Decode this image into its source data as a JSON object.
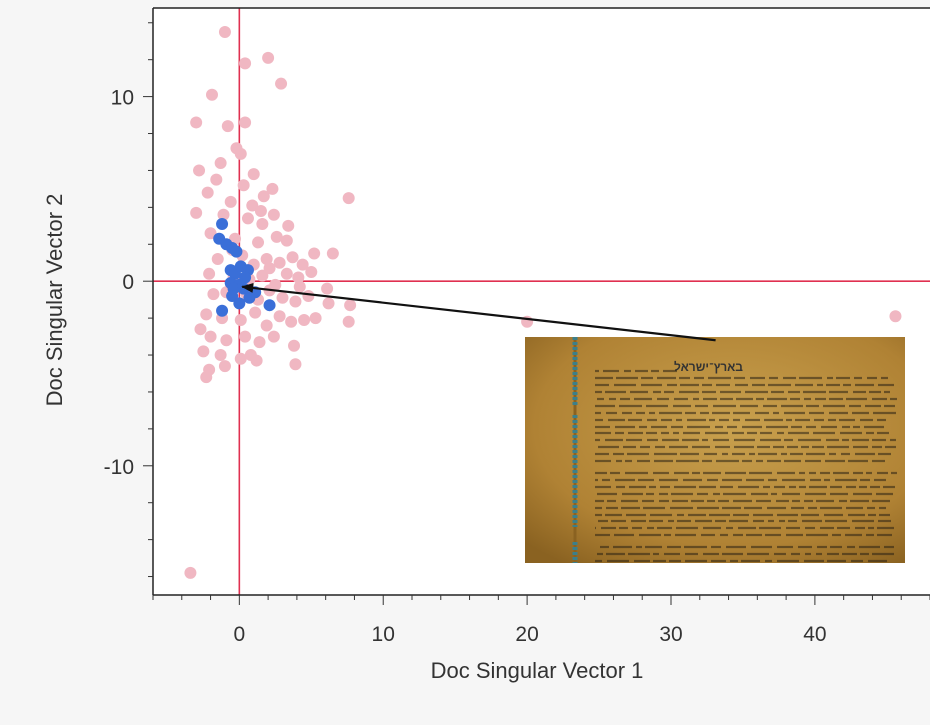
{
  "chart_data": {
    "type": "scatter",
    "xlabel": "Doc Singular Vector 1",
    "ylabel": "Doc Singular Vector 2",
    "xticks": [
      0,
      10,
      20,
      30,
      40
    ],
    "yticks": [
      10,
      0,
      -10
    ],
    "xlim": [
      -6,
      48
    ],
    "ylim": [
      -17,
      14.8
    ],
    "reference_lines": {
      "x": 0,
      "y": 0,
      "color": "#e03050"
    },
    "colors": {
      "background_points": "#f0b7c2",
      "highlighted_points": "#3a6fd8",
      "arrow": "#111111"
    },
    "series": [
      {
        "points": [
          [
            -1.0,
            13.5
          ],
          [
            0.4,
            11.8
          ],
          [
            2.0,
            12.1
          ],
          [
            2.9,
            10.7
          ],
          [
            -1.9,
            10.1
          ],
          [
            -3.0,
            8.6
          ],
          [
            -0.8,
            8.4
          ],
          [
            0.4,
            8.6
          ],
          [
            -0.2,
            7.2
          ],
          [
            -1.3,
            6.4
          ],
          [
            0.1,
            6.9
          ],
          [
            1.0,
            5.8
          ],
          [
            -2.8,
            6.0
          ],
          [
            -1.6,
            5.5
          ],
          [
            0.3,
            5.2
          ],
          [
            1.7,
            4.6
          ],
          [
            2.3,
            5.0
          ],
          [
            -2.2,
            4.8
          ],
          [
            -0.6,
            4.3
          ],
          [
            0.9,
            4.1
          ],
          [
            -3.0,
            3.7
          ],
          [
            -1.1,
            3.6
          ],
          [
            0.6,
            3.4
          ],
          [
            1.6,
            3.1
          ],
          [
            2.4,
            3.6
          ],
          [
            3.4,
            3.0
          ],
          [
            -2.0,
            2.6
          ],
          [
            -0.3,
            2.3
          ],
          [
            1.3,
            2.1
          ],
          [
            2.6,
            2.4
          ],
          [
            -1.5,
            1.2
          ],
          [
            0.2,
            1.4
          ],
          [
            1.0,
            0.9
          ],
          [
            1.9,
            1.2
          ],
          [
            2.8,
            1.0
          ],
          [
            3.7,
            1.3
          ],
          [
            4.4,
            0.9
          ],
          [
            5.2,
            1.5
          ],
          [
            6.5,
            1.5
          ],
          [
            -2.1,
            0.4
          ],
          [
            -0.4,
            0.2
          ],
          [
            0.7,
            0.1
          ],
          [
            1.6,
            0.3
          ],
          [
            2.5,
            -0.2
          ],
          [
            3.3,
            0.4
          ],
          [
            4.1,
            0.2
          ],
          [
            5.0,
            0.5
          ],
          [
            -1.8,
            -0.7
          ],
          [
            -0.9,
            -0.6
          ],
          [
            0.5,
            -0.7
          ],
          [
            1.3,
            -1.0
          ],
          [
            2.1,
            -0.5
          ],
          [
            3.0,
            -0.9
          ],
          [
            3.9,
            -1.1
          ],
          [
            4.8,
            -0.8
          ],
          [
            6.1,
            -0.4
          ],
          [
            6.2,
            -1.2
          ],
          [
            7.7,
            -1.3
          ],
          [
            7.6,
            -2.2
          ],
          [
            -2.3,
            -1.8
          ],
          [
            -1.2,
            -2.0
          ],
          [
            0.1,
            -2.1
          ],
          [
            1.1,
            -1.7
          ],
          [
            1.9,
            -2.4
          ],
          [
            2.8,
            -1.9
          ],
          [
            3.6,
            -2.2
          ],
          [
            4.5,
            -2.1
          ],
          [
            5.3,
            -2.0
          ],
          [
            -2.0,
            -3.0
          ],
          [
            -0.9,
            -3.2
          ],
          [
            0.4,
            -3.0
          ],
          [
            1.4,
            -3.3
          ],
          [
            2.4,
            -3.0
          ],
          [
            3.8,
            -3.5
          ],
          [
            -2.5,
            -3.8
          ],
          [
            -1.3,
            -4.0
          ],
          [
            0.1,
            -4.2
          ],
          [
            1.2,
            -4.3
          ],
          [
            3.9,
            -4.5
          ],
          [
            -2.1,
            -4.8
          ],
          [
            -1.0,
            -4.6
          ],
          [
            -2.3,
            -5.2
          ],
          [
            7.6,
            4.5
          ],
          [
            2.1,
            0.7
          ],
          [
            -0.5,
            1.7
          ],
          [
            1.5,
            3.8
          ],
          [
            -2.7,
            -2.6
          ],
          [
            4.2,
            -0.3
          ],
          [
            0.8,
            -4.0
          ],
          [
            3.3,
            2.2
          ],
          [
            20.0,
            -2.2
          ],
          [
            45.6,
            -1.9
          ],
          [
            -3.4,
            -15.8
          ]
        ]
      },
      {
        "points": [
          [
            -1.2,
            3.1
          ],
          [
            -1.4,
            2.3
          ],
          [
            -0.9,
            2.0
          ],
          [
            -0.5,
            1.8
          ],
          [
            -0.2,
            1.6
          ],
          [
            -0.6,
            0.6
          ],
          [
            -0.3,
            0.4
          ],
          [
            0.1,
            0.8
          ],
          [
            0.6,
            0.6
          ],
          [
            -0.6,
            -0.1
          ],
          [
            0.0,
            -0.2
          ],
          [
            -0.4,
            -0.4
          ],
          [
            0.3,
            -0.4
          ],
          [
            1.1,
            -0.6
          ],
          [
            0.7,
            -0.9
          ],
          [
            -0.5,
            -0.8
          ],
          [
            0.0,
            -1.2
          ],
          [
            2.1,
            -1.3
          ],
          [
            -1.2,
            -1.6
          ],
          [
            0.4,
            0.2
          ]
        ]
      }
    ],
    "annotation": {
      "arrow_from": [
        33.1,
        -3.2
      ],
      "arrow_to": [
        0.2,
        -0.3
      ],
      "inset_image": "ancient-hebrew-manuscript-scroll",
      "inset_heading_text": "בארץ־ישראל",
      "inset_colors": {
        "parchment_light": "#c9a14e",
        "parchment_mid": "#b08234",
        "parchment_dark": "#8a6221",
        "ink": "#2b2214",
        "thread": "#3c7f8a"
      }
    }
  }
}
